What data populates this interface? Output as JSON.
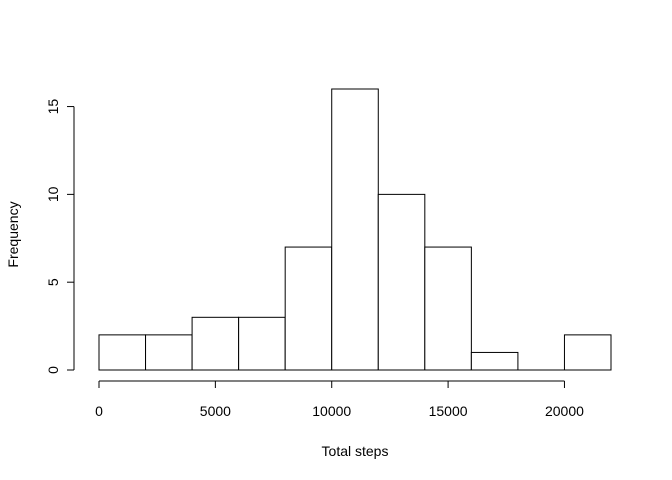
{
  "chart_data": {
    "type": "bar",
    "subtype": "histogram",
    "bins": [
      {
        "start": 0,
        "end": 2000,
        "value": 2
      },
      {
        "start": 2000,
        "end": 4000,
        "value": 2
      },
      {
        "start": 4000,
        "end": 6000,
        "value": 3
      },
      {
        "start": 6000,
        "end": 8000,
        "value": 3
      },
      {
        "start": 8000,
        "end": 10000,
        "value": 7
      },
      {
        "start": 10000,
        "end": 12000,
        "value": 16
      },
      {
        "start": 12000,
        "end": 14000,
        "value": 10
      },
      {
        "start": 14000,
        "end": 16000,
        "value": 7
      },
      {
        "start": 16000,
        "end": 18000,
        "value": 1
      },
      {
        "start": 18000,
        "end": 20000,
        "value": 0
      },
      {
        "start": 20000,
        "end": 22000,
        "value": 2
      }
    ],
    "xlabel": "Total steps",
    "ylabel": "Frequency",
    "xlim": [
      0,
      22000
    ],
    "ylim": [
      0,
      16
    ],
    "xticks": [
      {
        "value": 0,
        "label": "0"
      },
      {
        "value": 5000,
        "label": "5000"
      },
      {
        "value": 10000,
        "label": "10000"
      },
      {
        "value": 15000,
        "label": "15000"
      },
      {
        "value": 20000,
        "label": "20000"
      }
    ],
    "yticks": [
      {
        "value": 0,
        "label": "0"
      },
      {
        "value": 5,
        "label": "5"
      },
      {
        "value": 10,
        "label": "10"
      },
      {
        "value": 15,
        "label": "15"
      }
    ],
    "grid": false,
    "bar_fill": "#ffffff",
    "bar_stroke": "#000000"
  }
}
